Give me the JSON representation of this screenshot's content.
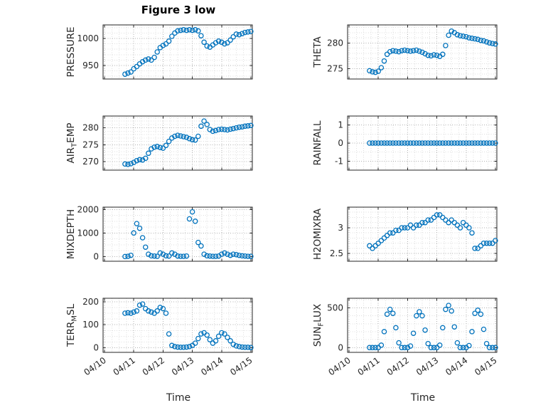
{
  "title": "Figure 3 low",
  "xlabel": "Time",
  "accent_color": "#0072BD",
  "axis_color": "#262626",
  "chart_data": {
    "type": "scatter",
    "marker": "open-circle",
    "marker_color": "#0072BD",
    "grid": "dotted-major-and-minor",
    "legend": "none",
    "xlim": [
      9.95,
      15.05
    ],
    "x_ticks": [
      10,
      11,
      12,
      13,
      14,
      15
    ],
    "x_tick_labels": [
      "04/10",
      "04/11",
      "04/12",
      "04/13",
      "04/14",
      "04/15"
    ],
    "xlabel": "Time",
    "plots": [
      {
        "name": "PRESSURE",
        "ylabel_pre": "PRESSURE",
        "ylabel_sub": "",
        "ylabel_post": "",
        "ylim": [
          925,
          1025
        ],
        "y_ticks": [
          950,
          1000
        ],
        "y_minor_step": 10,
        "x_start": 10.7,
        "x_step": 0.1,
        "values": [
          934,
          936,
          938,
          944,
          948,
          953,
          957,
          960,
          962,
          960,
          965,
          975,
          983,
          987,
          990,
          995,
          1004,
          1010,
          1014,
          1015,
          1016,
          1015,
          1016,
          1015,
          1016,
          1014,
          1005,
          993,
          986,
          984,
          988,
          992,
          995,
          993,
          990,
          992,
          997,
          1003,
          1008,
          1007,
          1009,
          1011,
          1012,
          1013
        ]
      },
      {
        "name": "THETA",
        "ylabel_pre": "THETA",
        "ylabel_sub": "",
        "ylabel_post": "",
        "ylim": [
          273,
          283.5
        ],
        "y_ticks": [
          275,
          280
        ],
        "y_minor_step": 1,
        "x_start": 10.7,
        "x_step": 0.1,
        "values": [
          274.6,
          274.4,
          274.3,
          274.5,
          275.2,
          276.5,
          277.8,
          278.3,
          278.5,
          278.4,
          278.3,
          278.5,
          278.6,
          278.5,
          278.4,
          278.5,
          278.6,
          278.4,
          278.2,
          277.9,
          277.6,
          277.5,
          277.7,
          277.6,
          277.4,
          277.8,
          279.5,
          281.5,
          282.3,
          282.0,
          281.6,
          281.4,
          281.3,
          281.2,
          281.0,
          280.9,
          280.8,
          280.7,
          280.5,
          280.4,
          280.2,
          280.0,
          279.9,
          279.8
        ]
      },
      {
        "name": "AIR_TEMP",
        "ylabel_pre": "AIR",
        "ylabel_sub": "T",
        "ylabel_post": "EMP",
        "ylim": [
          267.5,
          283.5
        ],
        "y_ticks": [
          270,
          275,
          280
        ],
        "y_minor_step": 1,
        "x_start": 10.7,
        "x_step": 0.1,
        "values": [
          269.3,
          269.2,
          269.4,
          269.8,
          270.3,
          270.6,
          270.5,
          271.0,
          272.5,
          273.8,
          274.3,
          274.5,
          274.2,
          274.0,
          274.8,
          276.0,
          277.0,
          277.5,
          277.8,
          277.6,
          277.4,
          277.2,
          276.8,
          276.5,
          276.4,
          277.5,
          280.5,
          282.0,
          281.0,
          279.5,
          279.0,
          279.2,
          279.5,
          279.6,
          279.5,
          279.4,
          279.6,
          279.8,
          280.0,
          280.2,
          280.3,
          280.5,
          280.6,
          280.7
        ]
      },
      {
        "name": "RAINFALL",
        "ylabel_pre": "RAINFALL",
        "ylabel_sub": "",
        "ylabel_post": "",
        "ylim": [
          -1.5,
          1.5
        ],
        "y_ticks": [
          -1,
          0,
          1
        ],
        "y_minor_step": 0.5,
        "x_start": 10.7,
        "x_step": 0.1,
        "values": [
          0,
          0,
          0,
          0,
          0,
          0,
          0,
          0,
          0,
          0,
          0,
          0,
          0,
          0,
          0,
          0,
          0,
          0,
          0,
          0,
          0,
          0,
          0,
          0,
          0,
          0,
          0,
          0,
          0,
          0,
          0,
          0,
          0,
          0,
          0,
          0,
          0,
          0,
          0,
          0,
          0,
          0,
          0,
          0
        ]
      },
      {
        "name": "MIXDEPTH",
        "ylabel_pre": "MIXDEPTH",
        "ylabel_sub": "",
        "ylabel_post": "",
        "ylim": [
          -200,
          2100
        ],
        "y_ticks": [
          0,
          1000,
          2000
        ],
        "y_minor_step": 250,
        "x_start": 10.7,
        "x_step": 0.1,
        "values": [
          0,
          10,
          50,
          1000,
          1400,
          1200,
          800,
          400,
          100,
          30,
          20,
          10,
          150,
          100,
          30,
          20,
          150,
          100,
          20,
          10,
          10,
          20,
          1600,
          1900,
          1500,
          600,
          450,
          100,
          30,
          20,
          10,
          10,
          20,
          100,
          150,
          100,
          50,
          100,
          80,
          50,
          30,
          20,
          10,
          10
        ]
      },
      {
        "name": "H2OMIXRA",
        "ylabel_pre": "H2OMIXRA",
        "ylabel_sub": "",
        "ylabel_post": "",
        "ylim": [
          2.35,
          3.4
        ],
        "y_ticks": [
          2.5,
          3
        ],
        "y_minor_step": 0.1,
        "x_start": 10.7,
        "x_step": 0.1,
        "values": [
          2.65,
          2.6,
          2.65,
          2.7,
          2.75,
          2.8,
          2.85,
          2.9,
          2.9,
          2.95,
          2.95,
          3.0,
          3.0,
          3.0,
          3.05,
          3.0,
          3.05,
          3.05,
          3.1,
          3.1,
          3.15,
          3.15,
          3.2,
          3.25,
          3.25,
          3.2,
          3.15,
          3.1,
          3.15,
          3.1,
          3.05,
          3.0,
          3.1,
          3.05,
          3.0,
          2.9,
          2.6,
          2.6,
          2.65,
          2.7,
          2.7,
          2.7,
          2.7,
          2.75
        ]
      },
      {
        "name": "TERR_MSL",
        "ylabel_pre": "TERR",
        "ylabel_sub": "M",
        "ylabel_post": "SL",
        "ylim": [
          -20,
          215
        ],
        "y_ticks": [
          0,
          100,
          200
        ],
        "y_minor_step": 25,
        "x_start": 10.7,
        "x_step": 0.1,
        "values": [
          150,
          152,
          150,
          155,
          160,
          185,
          190,
          170,
          160,
          155,
          150,
          160,
          175,
          170,
          150,
          60,
          10,
          5,
          3,
          2,
          2,
          3,
          5,
          10,
          20,
          40,
          60,
          65,
          55,
          35,
          20,
          30,
          50,
          65,
          60,
          45,
          30,
          15,
          8,
          5,
          3,
          2,
          2,
          1
        ]
      },
      {
        "name": "SUN_FLUX",
        "ylabel_pre": "SUN",
        "ylabel_sub": "F",
        "ylabel_post": "LUX",
        "ylim": [
          -60,
          620
        ],
        "y_ticks": [
          0,
          500
        ],
        "y_minor_step": 100,
        "x_start": 10.7,
        "x_step": 0.1,
        "values": [
          0,
          0,
          0,
          0,
          30,
          200,
          420,
          480,
          430,
          250,
          60,
          0,
          0,
          0,
          20,
          180,
          400,
          450,
          400,
          220,
          50,
          0,
          0,
          0,
          30,
          250,
          480,
          530,
          460,
          260,
          60,
          0,
          0,
          0,
          25,
          200,
          430,
          470,
          420,
          230,
          50,
          0,
          0,
          0
        ]
      }
    ]
  }
}
